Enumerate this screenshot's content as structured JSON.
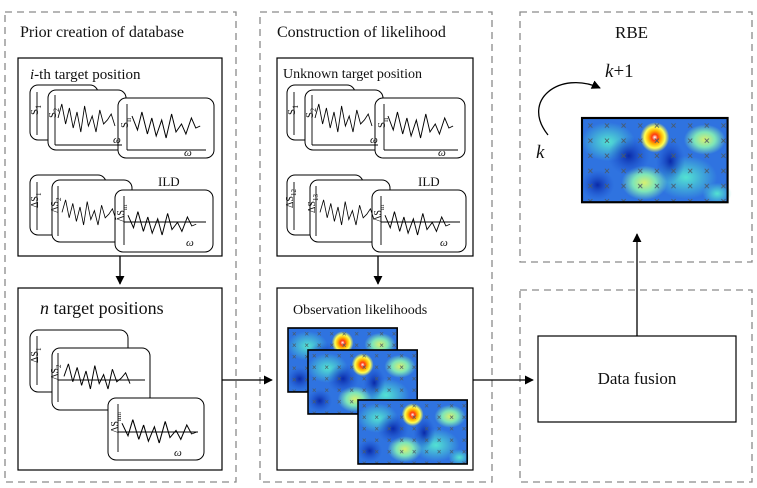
{
  "panels": {
    "prior": {
      "title": "Prior creation of database"
    },
    "likelihood": {
      "title": "Construction of likelihood"
    },
    "rbe": {
      "title": "RBE"
    }
  },
  "prior_box": {
    "title_italic": "i",
    "title_rest": "-th target position",
    "ild_label": "ILD",
    "omega": "ω"
  },
  "n_box": {
    "title_italic": "n",
    "title_rest": " target positions",
    "omega": "ω"
  },
  "unknown_box": {
    "title": "Unknown target position",
    "ild_label": "ILD",
    "omega": "ω"
  },
  "obs_box": {
    "title": "Observation likelihoods"
  },
  "rbe": {
    "k_plus_1_italic": "k",
    "k_plus_1_rest": "+1",
    "k_label": "k"
  },
  "fusion": {
    "label": "Data fusion"
  },
  "signal_labels": {
    "s1": "S",
    "s1_sub": "1",
    "s2": "S",
    "s2_sub": "2",
    "sn": "S",
    "sn_sub": "n",
    "ds1": "ΔS",
    "ds1_sub": "1",
    "ds2": "ΔS",
    "ds2_sub": "2",
    "dsm": "ΔS",
    "dsm_sub": "m",
    "dsnm": "ΔS",
    "dsnm_sub": "nm",
    "ds12": "ΔS",
    "ds12_sub": "12",
    "ds13": "ΔS",
    "ds13_sub": "13"
  },
  "colors": {
    "heat_low": "#1f5fd0",
    "heat_mid": "#3fd6c8",
    "heat_peak": "#c81a10",
    "panel_border": "#8a8a8a"
  }
}
